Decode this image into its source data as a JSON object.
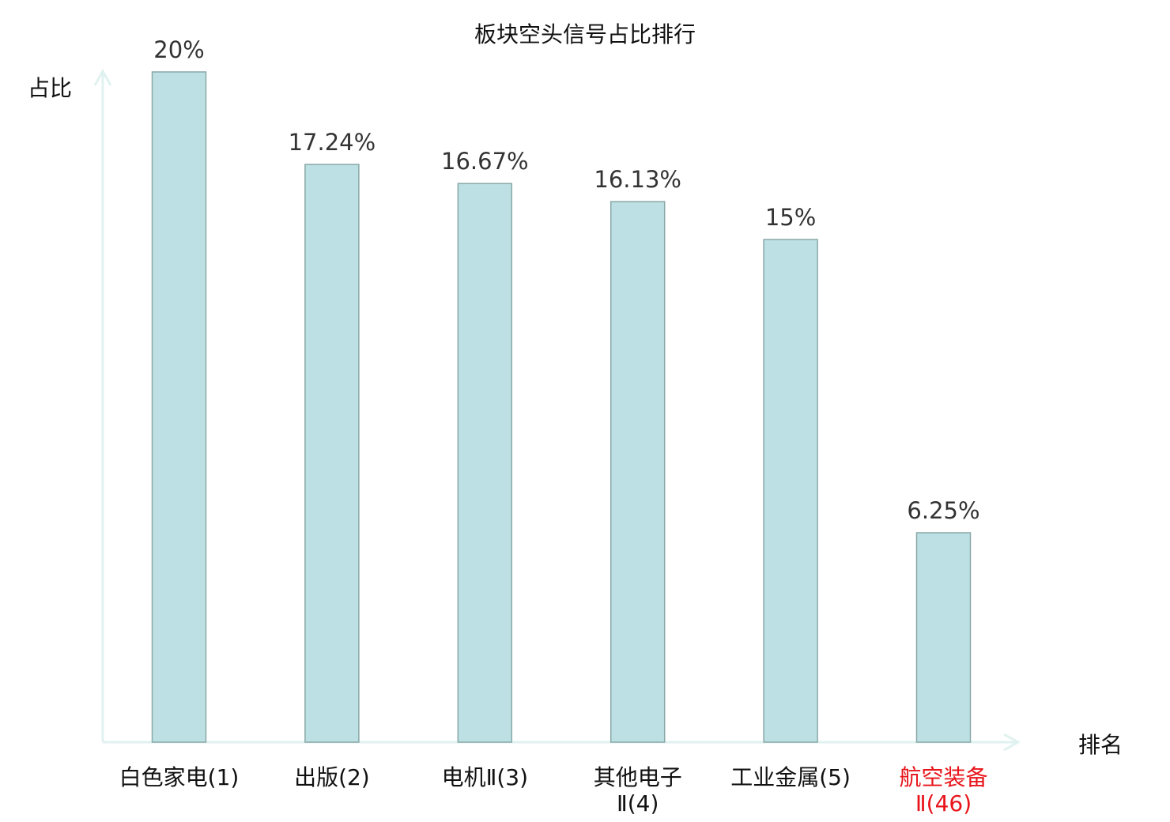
{
  "chart_data": {
    "type": "bar",
    "title": "板块空头信号占比排行",
    "ylabel": "占比",
    "xlabel": "排名",
    "categories": [
      "白色家电(1)",
      "出版(2)",
      "电机Ⅱ(3)",
      "其他电子Ⅱ(4)",
      "工业金属(5)",
      "航空装备Ⅱ(46)"
    ],
    "values": [
      20,
      17.24,
      16.67,
      16.13,
      15,
      6.25
    ],
    "value_labels": [
      "20%",
      "17.24%",
      "16.67%",
      "16.13%",
      "15%",
      "6.25%"
    ],
    "highlight_index": 5,
    "ylim": [
      0,
      20
    ],
    "grid": false,
    "colors": {
      "bar_fill": "#bce0e3",
      "bar_stroke": "#8aa8a8",
      "axis": "#e0f2f0",
      "text": "#333333",
      "highlight": "#e8141a"
    }
  }
}
